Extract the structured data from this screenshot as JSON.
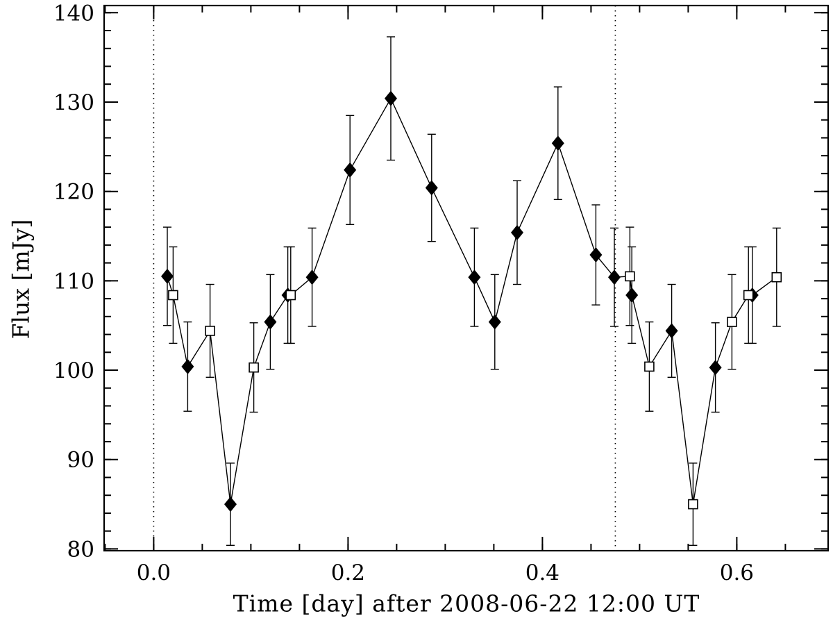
{
  "figure": {
    "background": "#ffffff",
    "line_color": "#000000",
    "description": "Radio light curve: flux vs time, filled diamonds = measurements, open squares = periodic duplicates, dotted vertical lines mark one period"
  },
  "chart_data": {
    "type": "scatter",
    "title": "",
    "xlabel": "Time [day] after 2008-06-22 12:00 UT",
    "ylabel": "Flux [mJy]",
    "legend": "none",
    "grid": false,
    "connect_all_points": true,
    "x_axis": {
      "range": [
        -0.051,
        0.694
      ],
      "major_ticks": [
        0.0,
        0.2,
        0.4,
        0.6
      ],
      "tick_labels": [
        "0.0",
        "0.2",
        "0.4",
        "0.6"
      ],
      "minor_step": 0.05
    },
    "y_axis": {
      "range": [
        79.8,
        140.8
      ],
      "major_ticks": [
        80,
        90,
        100,
        110,
        120,
        130,
        140
      ],
      "tick_labels": [
        "80",
        "90",
        "100",
        "110",
        "120",
        "130",
        "140"
      ],
      "minor_step": 2
    },
    "vlines": [
      0.0,
      0.475
    ],
    "series": [
      {
        "name": "observed-flux",
        "marker": "filled-diamond",
        "color": "#000000",
        "points": [
          {
            "x": 0.014,
            "y": 110.5,
            "err": 5.5
          },
          {
            "x": 0.035,
            "y": 100.4,
            "err": 5.0
          },
          {
            "x": 0.079,
            "y": 85.0,
            "err": 4.6
          },
          {
            "x": 0.12,
            "y": 105.4,
            "err": 5.3
          },
          {
            "x": 0.138,
            "y": 108.4,
            "err": 5.4
          },
          {
            "x": 0.163,
            "y": 110.4,
            "err": 5.5
          },
          {
            "x": 0.202,
            "y": 122.4,
            "err": 6.1
          },
          {
            "x": 0.244,
            "y": 130.4,
            "err": 6.9
          },
          {
            "x": 0.286,
            "y": 120.4,
            "err": 6.0
          },
          {
            "x": 0.33,
            "y": 110.4,
            "err": 5.5
          },
          {
            "x": 0.351,
            "y": 105.4,
            "err": 5.3
          },
          {
            "x": 0.374,
            "y": 115.4,
            "err": 5.8
          },
          {
            "x": 0.416,
            "y": 125.4,
            "err": 6.3
          },
          {
            "x": 0.455,
            "y": 112.9,
            "err": 5.6
          },
          {
            "x": 0.474,
            "y": 110.4,
            "err": 5.5
          },
          {
            "x": 0.492,
            "y": 108.4,
            "err": 5.4
          },
          {
            "x": 0.533,
            "y": 104.4,
            "err": 5.2
          },
          {
            "x": 0.578,
            "y": 100.3,
            "err": 5.0
          },
          {
            "x": 0.616,
            "y": 108.4,
            "err": 5.4
          }
        ]
      },
      {
        "name": "period-duplicated-flux",
        "marker": "open-square",
        "color": "#000000",
        "points": [
          {
            "x": 0.02,
            "y": 108.4,
            "err": 5.4
          },
          {
            "x": 0.058,
            "y": 104.4,
            "err": 5.2
          },
          {
            "x": 0.103,
            "y": 100.3,
            "err": 5.0
          },
          {
            "x": 0.141,
            "y": 108.4,
            "err": 5.4
          },
          {
            "x": 0.49,
            "y": 110.5,
            "err": 5.5
          },
          {
            "x": 0.51,
            "y": 100.4,
            "err": 5.0
          },
          {
            "x": 0.555,
            "y": 85.0,
            "err": 4.6
          },
          {
            "x": 0.595,
            "y": 105.4,
            "err": 5.3
          },
          {
            "x": 0.612,
            "y": 108.4,
            "err": 5.4
          },
          {
            "x": 0.641,
            "y": 110.4,
            "err": 5.5
          }
        ]
      }
    ]
  }
}
